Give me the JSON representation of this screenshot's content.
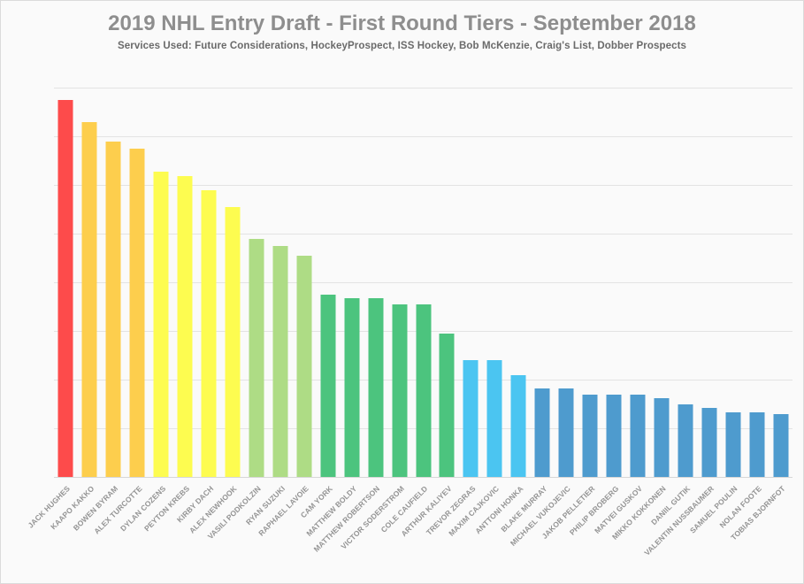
{
  "header": {
    "title": "2019 NHL Entry Draft - First Round Tiers - September 2018",
    "subtitle": "Services Used: Future Considerations, HockeyProspect, ISS Hockey, Bob McKenzie, Craig's List, Dobber Prospects"
  },
  "colors": {
    "canvas_background": "#FAFAFA",
    "canvas_border": "#DBDBDB",
    "gridline": "#E3E3E3",
    "axis_line": "#D7D7D7",
    "title_text": "#8E8E8E",
    "subtitle_text": "#6A6A6A",
    "tick_label_text": "#949494"
  },
  "chart_data": {
    "type": "bar",
    "title": "2019 NHL Entry Draft - First Round Tiers - September 2018",
    "subtitle": "Services Used: Future Considerations, HockeyProspect, ISS Hockey, Bob McKenzie, Craig's List, Dobber Prospects",
    "xlabel": "",
    "ylabel": "",
    "ylim": [
      0,
      32
    ],
    "gridline_step": 4,
    "y_axis_labels_visible": false,
    "grid": true,
    "legend": "none",
    "x_label_rotation_deg": 45,
    "categories": [
      "JACK HUGHES",
      "KAAPO KAKKO",
      "BOWEN BYRAM",
      "ALEX TURCOTTE",
      "DYLAN COZENS",
      "PEYTON KREBS",
      "KIRBY DACH",
      "ALEX NEWHOOK",
      "VASILI PODKOLZIN",
      "RYAN SUZUKI",
      "RAPHAEL LAVOIE",
      "CAM YORK",
      "MATTHEW BOLDY",
      "MATTHEW ROBERTSON",
      "VICTOR SODERSTROM",
      "COLE CAUFIELD",
      "ARTHUR KALIYEV",
      "TREVOR ZEGRAS",
      "MAXIM CAJKOVIC",
      "ANTTONI HONKA",
      "BLAKE MURRAY",
      "MICHAEL VUKOJEVIC",
      "JAKOB PELLETIER",
      "PHILIP BROBERG",
      "MATVEI GUSKOV",
      "MIKKO KOKKONEN",
      "DANIIL GUTIK",
      "VALENTIN NUSSBAUMER",
      "SAMUEL POULIN",
      "NOLAN FOOTE",
      "TOBIAS BJORNFOT"
    ],
    "values": [
      31.0,
      29.2,
      27.6,
      27.0,
      25.1,
      24.7,
      23.6,
      22.2,
      19.6,
      19.0,
      18.2,
      15.0,
      14.7,
      14.7,
      14.2,
      14.2,
      11.8,
      9.6,
      9.6,
      8.4,
      7.3,
      7.3,
      6.8,
      6.8,
      6.8,
      6.5,
      6.0,
      5.7,
      5.3,
      5.3,
      5.2
    ],
    "tier_of_bar": [
      1,
      2,
      2,
      2,
      3,
      3,
      3,
      3,
      4,
      4,
      4,
      5,
      5,
      5,
      5,
      5,
      5,
      6,
      6,
      6,
      7,
      7,
      7,
      7,
      7,
      7,
      7,
      7,
      7,
      7,
      7
    ],
    "tier_colors": {
      "1": "#FD4B4B",
      "2": "#FDCE4D",
      "3": "#FDFC50",
      "4": "#AEDC85",
      "5": "#4CC47E",
      "6": "#4BC5F1",
      "7": "#4E9BCE"
    },
    "tiers": [
      {
        "tier": 1,
        "color": "#FD4B4B",
        "players": [
          "JACK HUGHES"
        ]
      },
      {
        "tier": 2,
        "color": "#FDCE4D",
        "players": [
          "KAAPO KAKKO",
          "BOWEN BYRAM",
          "ALEX TURCOTTE"
        ]
      },
      {
        "tier": 3,
        "color": "#FDFC50",
        "players": [
          "DYLAN COZENS",
          "PEYTON KREBS",
          "KIRBY DACH",
          "ALEX NEWHOOK"
        ]
      },
      {
        "tier": 4,
        "color": "#AEDC85",
        "players": [
          "VASILI PODKOLZIN",
          "RYAN SUZUKI",
          "RAPHAEL LAVOIE"
        ]
      },
      {
        "tier": 5,
        "color": "#4CC47E",
        "players": [
          "CAM YORK",
          "MATTHEW BOLDY",
          "MATTHEW ROBERTSON",
          "VICTOR SODERSTROM",
          "COLE CAUFIELD",
          "ARTHUR KALIYEV"
        ]
      },
      {
        "tier": 6,
        "color": "#4BC5F1",
        "players": [
          "TREVOR ZEGRAS",
          "MAXIM CAJKOVIC",
          "ANTTONI HONKA"
        ]
      },
      {
        "tier": 7,
        "color": "#4E9BCE",
        "players": [
          "BLAKE MURRAY",
          "MICHAEL VUKOJEVIC",
          "JAKOB PELLETIER",
          "PHILIP BROBERG",
          "MATVEI GUSKOV",
          "MIKKO KOKKONEN",
          "DANIIL GUTIK",
          "VALENTIN NUSSBAUMER",
          "SAMUEL POULIN",
          "NOLAN FOOTE",
          "TOBIAS BJORNFOT"
        ]
      }
    ]
  }
}
